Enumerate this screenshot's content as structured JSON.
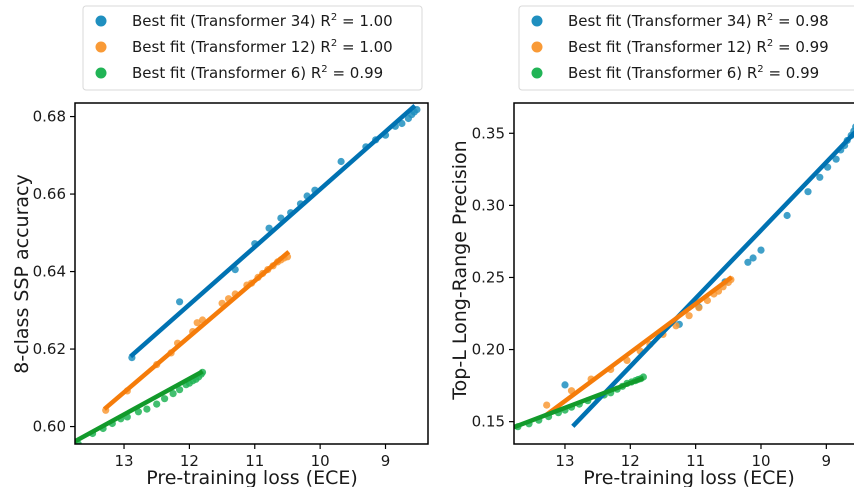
{
  "colors": {
    "t34_point": "#1f8fbf",
    "t34_line": "#0072b2",
    "t12_point": "#f99a36",
    "t12_line": "#f57c0a",
    "t6_point": "#21b456",
    "t6_line": "#129a2b"
  },
  "chart_data": [
    {
      "type": "scatter",
      "xlabel": "Pre-training loss (ECE)",
      "ylabel": "8-class SSP accuracy",
      "xlim": [
        13.75,
        8.35
      ],
      "ylim": [
        0.5955,
        0.6835
      ],
      "x_reversed": true,
      "xticks": [
        13,
        12,
        11,
        10,
        9
      ],
      "yticks": [
        0.6,
        0.62,
        0.64,
        0.66,
        0.68
      ],
      "ytick_labels": [
        "0.60",
        "0.62",
        "0.64",
        "0.66",
        "0.68"
      ],
      "legend_position": "above",
      "grid": false,
      "series": [
        {
          "name": "Best fit (Transformer 34) R",
          "r2": "= 1.00",
          "color_key": "t34",
          "fit": [
            [
              12.9,
              0.6181
            ],
            [
              8.55,
              0.6828
            ]
          ],
          "points": [
            [
              12.88,
              0.6178
            ],
            [
              12.15,
              0.6322
            ],
            [
              11.3,
              0.6405
            ],
            [
              11.0,
              0.6472
            ],
            [
              10.78,
              0.6512
            ],
            [
              10.6,
              0.6538
            ],
            [
              10.45,
              0.6552
            ],
            [
              10.3,
              0.6575
            ],
            [
              10.2,
              0.6595
            ],
            [
              10.08,
              0.661
            ],
            [
              9.68,
              0.6684
            ],
            [
              9.3,
              0.6722
            ],
            [
              9.15,
              0.674
            ],
            [
              9.0,
              0.6752
            ],
            [
              8.85,
              0.6775
            ],
            [
              8.75,
              0.6782
            ],
            [
              8.65,
              0.6795
            ],
            [
              8.6,
              0.6805
            ],
            [
              8.56,
              0.6812
            ],
            [
              8.52,
              0.6818
            ]
          ]
        },
        {
          "name": "Best fit (Transformer 12) R",
          "r2": "= 1.00",
          "color_key": "t12",
          "fit": [
            [
              13.3,
              0.6045
            ],
            [
              10.48,
              0.6451
            ]
          ],
          "points": [
            [
              13.28,
              0.6042
            ],
            [
              12.95,
              0.6092
            ],
            [
              12.5,
              0.616
            ],
            [
              12.28,
              0.619
            ],
            [
              12.18,
              0.6215
            ],
            [
              11.95,
              0.6245
            ],
            [
              11.88,
              0.6268
            ],
            [
              11.8,
              0.6275
            ],
            [
              11.5,
              0.6318
            ],
            [
              11.4,
              0.633
            ],
            [
              11.3,
              0.6342
            ],
            [
              11.12,
              0.6365
            ],
            [
              11.05,
              0.637
            ],
            [
              10.95,
              0.6385
            ],
            [
              10.88,
              0.6395
            ],
            [
              10.8,
              0.6405
            ],
            [
              10.72,
              0.6415
            ],
            [
              10.65,
              0.6425
            ],
            [
              10.6,
              0.643
            ],
            [
              10.55,
              0.6435
            ],
            [
              10.5,
              0.6438
            ]
          ]
        },
        {
          "name": "Best fit (Transformer   6) R",
          "r2": "= 0.99",
          "color_key": "t6",
          "fit": [
            [
              13.75,
              0.5962
            ],
            [
              11.8,
              0.6142
            ]
          ],
          "points": [
            [
              13.7,
              0.5955
            ],
            [
              13.48,
              0.5982
            ],
            [
              13.32,
              0.5995
            ],
            [
              13.18,
              0.6008
            ],
            [
              13.05,
              0.602
            ],
            [
              12.95,
              0.6025
            ],
            [
              12.78,
              0.6038
            ],
            [
              12.65,
              0.6045
            ],
            [
              12.5,
              0.6058
            ],
            [
              12.38,
              0.6072
            ],
            [
              12.25,
              0.6085
            ],
            [
              12.15,
              0.6095
            ],
            [
              12.05,
              0.6108
            ],
            [
              12.0,
              0.6112
            ],
            [
              11.95,
              0.6118
            ],
            [
              11.9,
              0.6122
            ],
            [
              11.86,
              0.6128
            ],
            [
              11.82,
              0.6135
            ],
            [
              11.8,
              0.614
            ]
          ]
        }
      ]
    },
    {
      "type": "scatter",
      "xlabel": "Pre-training loss (ECE)",
      "ylabel": "Top-L Long-Range Precision",
      "xlim": [
        13.78,
        8.5
      ],
      "ylim": [
        0.1345,
        0.371
      ],
      "x_reversed": true,
      "xticks": [
        13,
        12,
        11,
        10,
        9
      ],
      "yticks": [
        0.15,
        0.2,
        0.25,
        0.3,
        0.35
      ],
      "ytick_labels": [
        "0.15",
        "0.20",
        "0.25",
        "0.30",
        "0.35"
      ],
      "legend_position": "above",
      "grid": false,
      "series": [
        {
          "name": "Best fit (Transformer 34) R",
          "r2": "= 0.98",
          "color_key": "t34",
          "fit": [
            [
              12.88,
              0.1468
            ],
            [
              8.5,
              0.3535
            ]
          ],
          "points": [
            [
              13.0,
              0.1755
            ],
            [
              11.25,
              0.2175
            ],
            [
              10.95,
              0.2295
            ],
            [
              10.55,
              0.247
            ],
            [
              10.2,
              0.2605
            ],
            [
              10.12,
              0.2635
            ],
            [
              10.0,
              0.269
            ],
            [
              9.6,
              0.293
            ],
            [
              9.28,
              0.3095
            ],
            [
              9.1,
              0.3195
            ],
            [
              8.98,
              0.3265
            ],
            [
              8.85,
              0.332
            ],
            [
              8.78,
              0.3385
            ],
            [
              8.72,
              0.3415
            ],
            [
              8.68,
              0.345
            ],
            [
              8.62,
              0.3485
            ],
            [
              8.58,
              0.3515
            ],
            [
              8.55,
              0.3545
            ],
            [
              8.52,
              0.3575
            ],
            [
              8.5,
              0.3605
            ]
          ]
        },
        {
          "name": "Best fit (Transformer 12) R",
          "r2": "= 0.99",
          "color_key": "t12",
          "fit": [
            [
              13.3,
              0.1542
            ],
            [
              10.45,
              0.2502
            ]
          ],
          "points": [
            [
              13.28,
              0.1615
            ],
            [
              12.9,
              0.1715
            ],
            [
              12.6,
              0.1795
            ],
            [
              12.3,
              0.1862
            ],
            [
              12.05,
              0.1925
            ],
            [
              11.85,
              0.199
            ],
            [
              11.7,
              0.2035
            ],
            [
              11.5,
              0.2105
            ],
            [
              11.3,
              0.2165
            ],
            [
              11.1,
              0.2235
            ],
            [
              10.95,
              0.229
            ],
            [
              10.82,
              0.234
            ],
            [
              10.72,
              0.2385
            ],
            [
              10.65,
              0.2405
            ],
            [
              10.58,
              0.2435
            ],
            [
              10.5,
              0.2465
            ],
            [
              10.46,
              0.2485
            ]
          ]
        },
        {
          "name": "Best fit (Transformer   6) R",
          "r2": "= 0.99",
          "color_key": "t6",
          "fit": [
            [
              13.78,
              0.1462
            ],
            [
              11.8,
              0.1802
            ]
          ],
          "points": [
            [
              13.72,
              0.1465
            ],
            [
              13.55,
              0.1485
            ],
            [
              13.4,
              0.151
            ],
            [
              13.25,
              0.1535
            ],
            [
              13.1,
              0.1562
            ],
            [
              13.0,
              0.158
            ],
            [
              12.9,
              0.16
            ],
            [
              12.78,
              0.1622
            ],
            [
              12.65,
              0.1645
            ],
            [
              12.5,
              0.1668
            ],
            [
              12.4,
              0.1685
            ],
            [
              12.3,
              0.17
            ],
            [
              12.2,
              0.1725
            ],
            [
              12.12,
              0.1745
            ],
            [
              12.05,
              0.1765
            ],
            [
              11.98,
              0.1775
            ],
            [
              11.92,
              0.1785
            ],
            [
              11.88,
              0.1792
            ],
            [
              11.84,
              0.1798
            ],
            [
              11.8,
              0.181
            ]
          ]
        }
      ]
    }
  ]
}
